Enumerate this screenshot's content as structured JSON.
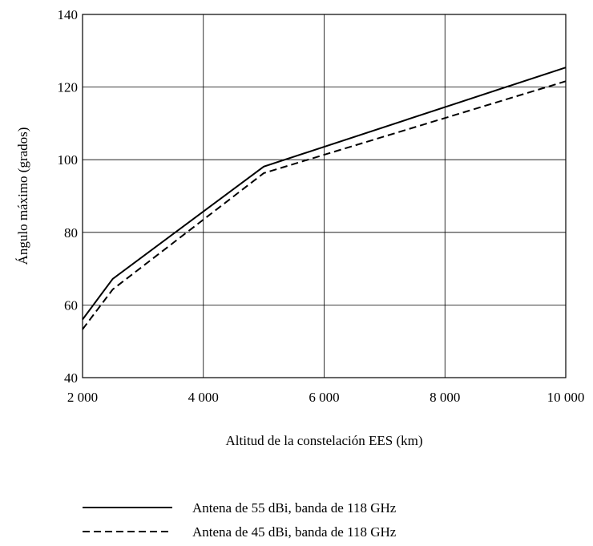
{
  "chart_data": {
    "type": "line",
    "xlabel": "Altitud de la constelación EES (km)",
    "ylabel": "Ángulo máximo (grados)",
    "xlim": [
      2000,
      10000
    ],
    "ylim": [
      40,
      140
    ],
    "x_ticks": [
      2000,
      4000,
      6000,
      8000,
      10000
    ],
    "x_tick_labels": [
      "2 000",
      "4 000",
      "6 000",
      "8 000",
      "10 000"
    ],
    "y_ticks": [
      40,
      60,
      80,
      100,
      120,
      140
    ],
    "y_tick_labels": [
      "40",
      "60",
      "80",
      "100",
      "120",
      "140"
    ],
    "grid": true,
    "legend_position": "bottom",
    "series": [
      {
        "name": "Antena de 55 dBi, banda de 118 GHz",
        "style": "solid",
        "color": "#000000",
        "points": [
          [
            2000,
            56
          ],
          [
            2500,
            67.2
          ],
          [
            5000,
            98.1
          ],
          [
            10000,
            125.4
          ]
        ]
      },
      {
        "name": "Antena de 45 dBi, banda de 118 GHz",
        "style": "dashed",
        "color": "#000000",
        "points": [
          [
            2000,
            53.3
          ],
          [
            2500,
            64.3
          ],
          [
            5000,
            96.3
          ],
          [
            10000,
            121.6
          ]
        ]
      }
    ]
  }
}
